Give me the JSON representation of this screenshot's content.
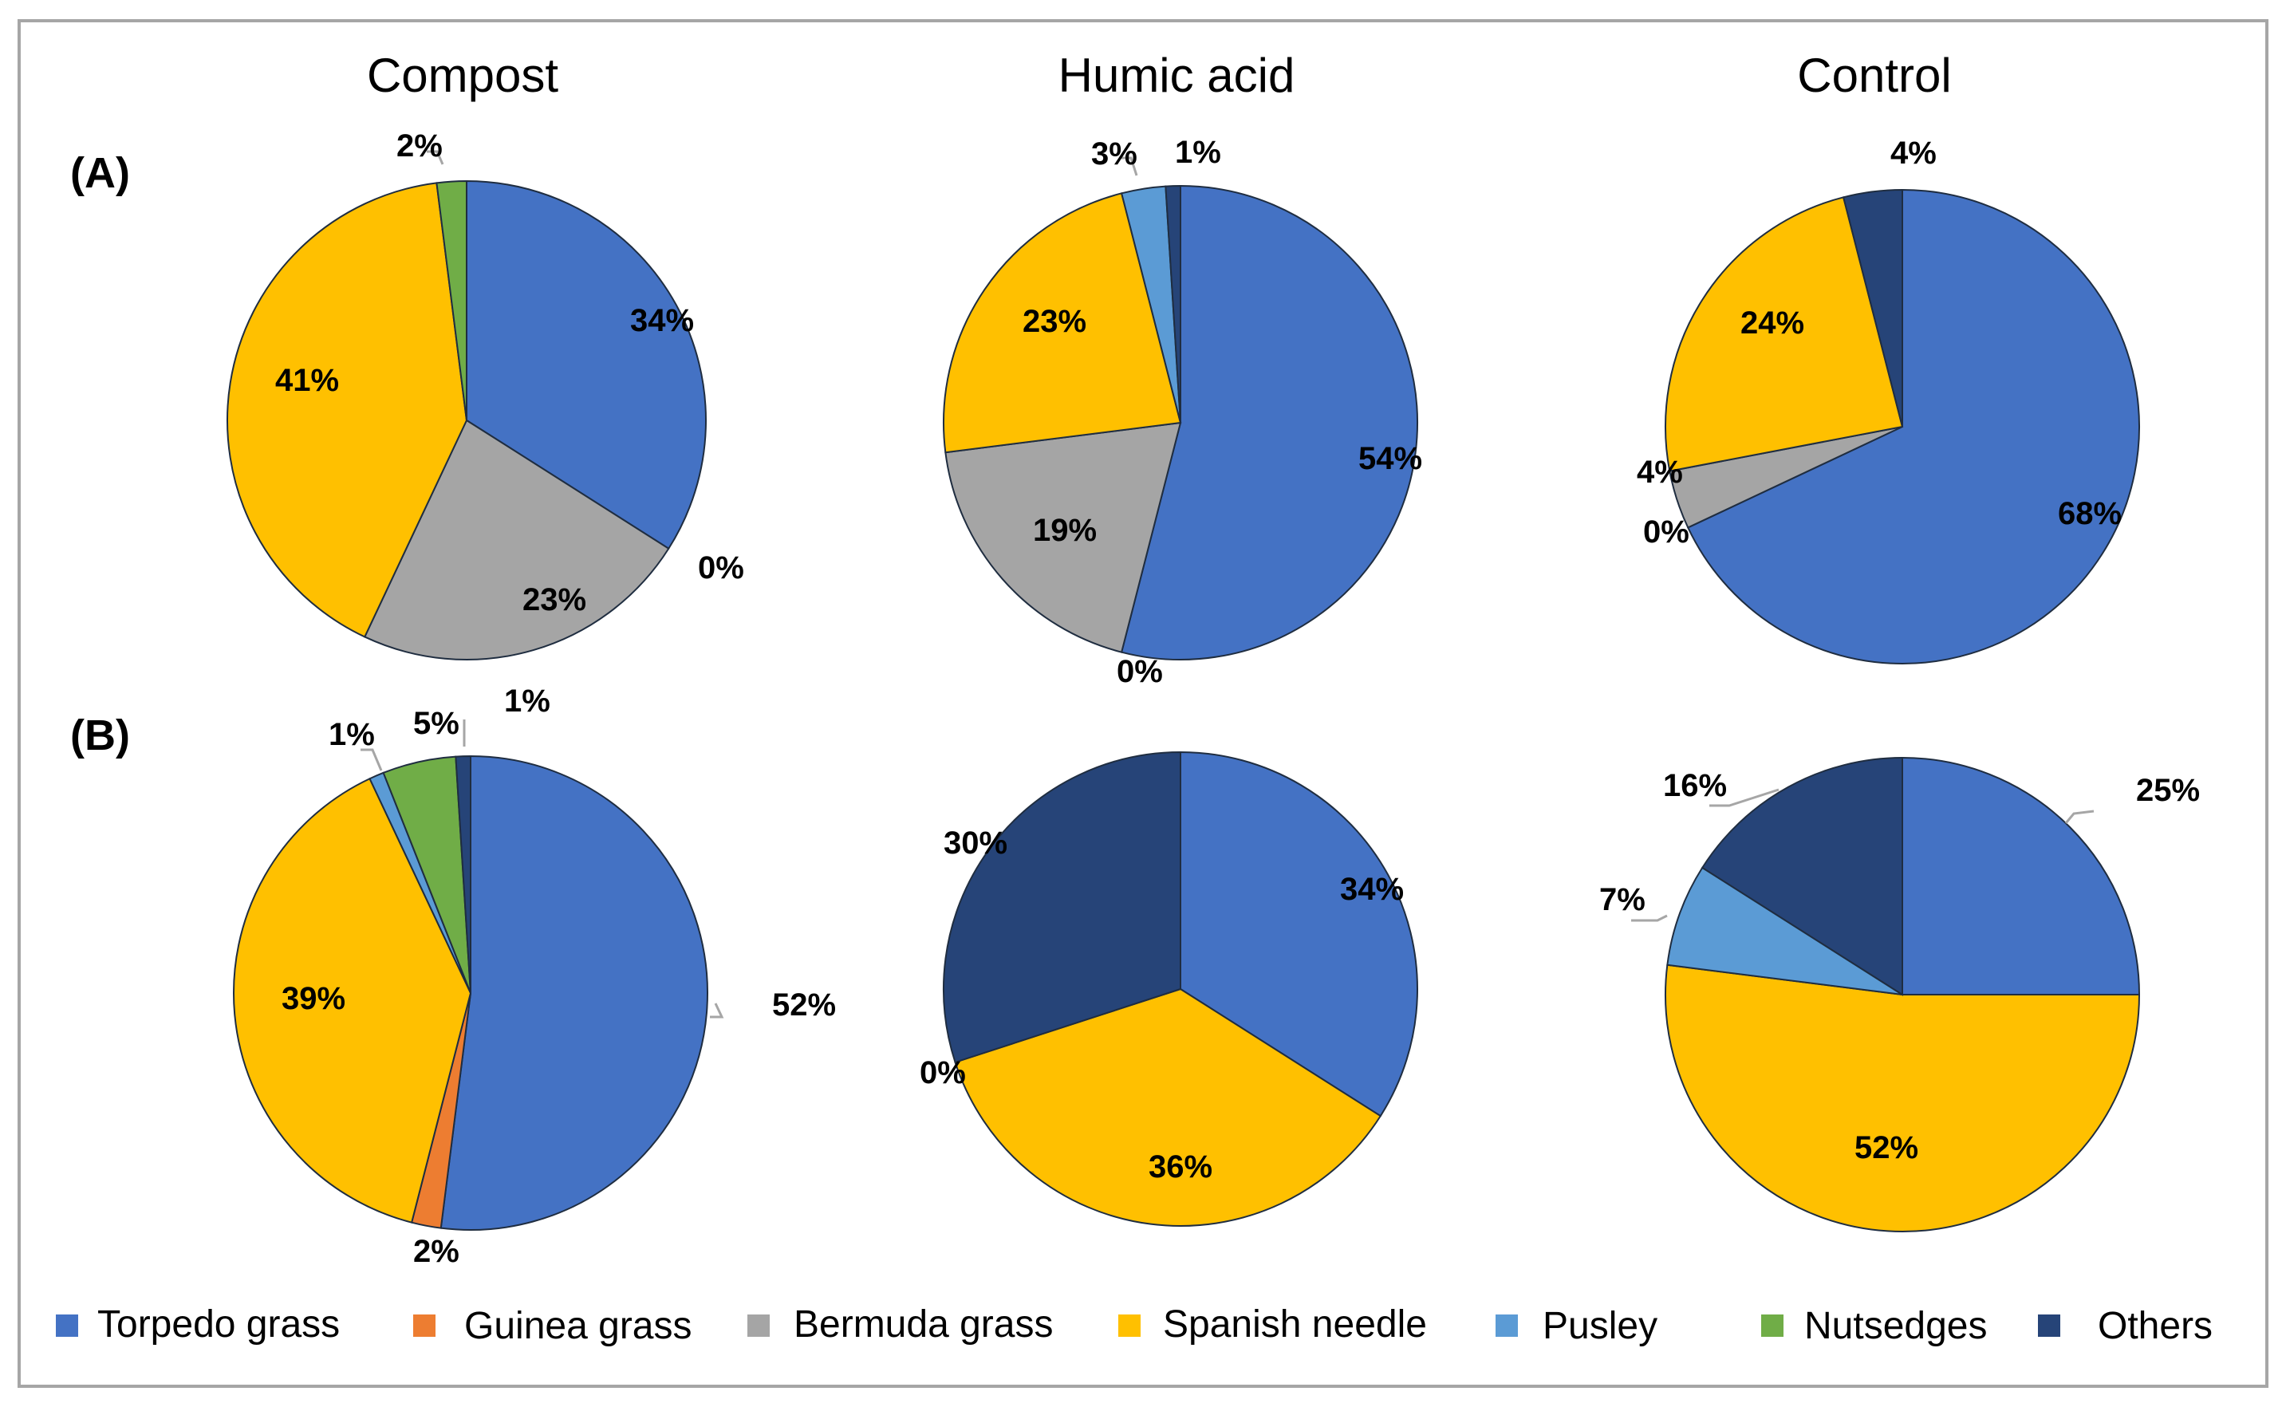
{
  "chart_data": {
    "type": "pie",
    "column_titles": [
      "Compost",
      "Humic acid",
      "Control"
    ],
    "row_labels": [
      "(A)",
      "(B)"
    ],
    "legend": [
      {
        "name": "Torpedo grass",
        "color": "#4472c4"
      },
      {
        "name": "Guinea grass",
        "color": "#ed7d31"
      },
      {
        "name": "Bermuda grass",
        "color": "#a5a5a5"
      },
      {
        "name": "Spanish needle",
        "color": "#ffc000"
      },
      {
        "name": "Pusley",
        "color": "#5b9bd5"
      },
      {
        "name": "Nutsedges",
        "color": "#70ad47"
      },
      {
        "name": "Others",
        "color": "#264478"
      }
    ],
    "pies": [
      {
        "row": "(A)",
        "column": "Compost",
        "values": [
          34,
          0,
          23,
          41,
          0,
          2,
          0
        ],
        "labels": [
          "34%",
          "0%",
          "23%",
          "41%",
          null,
          "2%",
          null
        ]
      },
      {
        "row": "(A)",
        "column": "Humic acid",
        "values": [
          54,
          0,
          19,
          23,
          3,
          0,
          1
        ],
        "labels": [
          "54%",
          "0%",
          "19%",
          "23%",
          "3%",
          null,
          "1%"
        ]
      },
      {
        "row": "(A)",
        "column": "Control",
        "values": [
          68,
          0,
          4,
          24,
          0,
          0,
          4
        ],
        "labels": [
          "68%",
          "0%",
          "4%",
          "24%",
          null,
          null,
          "4%"
        ]
      },
      {
        "row": "(B)",
        "column": "Compost",
        "values": [
          52,
          2,
          0,
          39,
          1,
          5,
          1
        ],
        "labels": [
          "52%",
          "2%",
          null,
          "39%",
          "1%",
          "5%",
          "1%"
        ]
      },
      {
        "row": "(B)",
        "column": "Humic acid",
        "values": [
          34,
          0,
          0,
          36,
          0,
          0,
          30
        ],
        "labels": [
          "34%",
          null,
          null,
          "36%",
          "0%",
          null,
          "30%"
        ]
      },
      {
        "row": "(B)",
        "column": "Control",
        "values": [
          25,
          0,
          0,
          52,
          7,
          0,
          16
        ],
        "labels": [
          "25%",
          null,
          null,
          "52%",
          "7%",
          null,
          "16%"
        ]
      }
    ]
  }
}
